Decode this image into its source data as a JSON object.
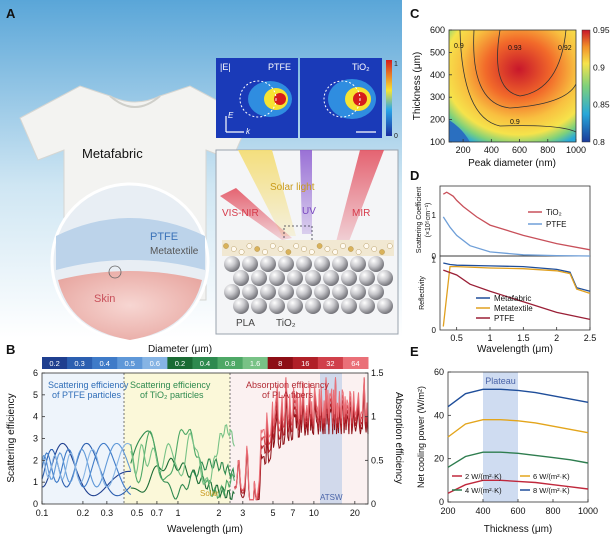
{
  "panels": {
    "A": {
      "letter": "A",
      "shirt_label": "Metafabric",
      "ptfe_label": "PTFE",
      "metatextile_label": "Metatextile",
      "skin_label": "Skin",
      "solar_label": "Solar light",
      "visnir_label": "VIS-NIR",
      "uv_label": "UV",
      "mir_label": "MIR",
      "pla_label": "PLA",
      "tio2_label": "TiO₂",
      "inset_field_label": "|E|",
      "inset_ptfe_label": "PTFE",
      "inset_tio2_label": "TiO₂",
      "inset_e_label": "E",
      "inset_k_label": "k",
      "inset_scale_max": "1",
      "inset_scale_min": "0"
    },
    "B": {
      "letter": "B",
      "diameter_title": "Diameter (μm)",
      "ptfe_diameters": [
        "0.2",
        "0.3",
        "0.4",
        "0.5",
        "0.6"
      ],
      "tio2_diameters": [
        "0.2",
        "0.4",
        "0.8",
        "1.6"
      ],
      "pla_diameters": [
        "8",
        "16",
        "32",
        "64"
      ],
      "ptfe_caption_1": "Scattering efficiency",
      "ptfe_caption_2": "of PTFE particles",
      "tio2_caption_1": "Scattering efficiency",
      "tio2_caption_2": "of TiO₂ particles",
      "pla_caption_1": "Absorption efficiency",
      "pla_caption_2": "of PLA fibers",
      "solar_label": "Solar",
      "atsw_label": "ATSW",
      "xlabel": "Wavelength (μm)",
      "ylabel": "Scattering efficiency",
      "ylabel_right": "Absorption efficiency",
      "y_ticks": [
        "0",
        "1",
        "2",
        "3",
        "4",
        "5",
        "6"
      ],
      "y_ticks_right": [
        "0",
        "0.5",
        "1",
        "1.5"
      ],
      "x_ticks": [
        "0.1",
        "0.2",
        "0.3",
        "0.5",
        "0.7",
        "1",
        "2",
        "3",
        "5",
        "7",
        "10",
        "20"
      ]
    },
    "C": {
      "letter": "C",
      "xlabel": "Peak diameter (nm)",
      "ylabel": "Thickness (μm)",
      "x_ticks": [
        "200",
        "400",
        "600",
        "800",
        "1000"
      ],
      "y_ticks": [
        "100",
        "200",
        "300",
        "400",
        "500",
        "600"
      ],
      "colorbar_ticks": [
        "0.95",
        "0.9",
        "0.85",
        "0.8"
      ],
      "contour_labels": [
        "0.9",
        "0.93",
        "0.92",
        "0.9"
      ]
    },
    "D": {
      "letter": "D",
      "ylabel_top_1": "Scattering Coefficient",
      "ylabel_top_2": "(×10⁵cm⁻¹)",
      "ylabel_bottom": "Reflectivity",
      "xlabel": "Wavelength (μm)",
      "top_y_ticks": [
        "0",
        "1"
      ],
      "bottom_y_ticks": [
        "0",
        "1"
      ],
      "x_ticks": [
        "0.5",
        "1",
        "1.5",
        "2",
        "2.5"
      ],
      "legend_top": [
        "TiO₂",
        "PTFE"
      ],
      "legend_bottom": [
        "Metafabric",
        "Metatextile",
        "PTFE"
      ]
    },
    "E": {
      "letter": "E",
      "xlabel": "Thickness (μm)",
      "ylabel": "Net cooling power (W/m²)",
      "x_ticks": [
        "200",
        "400",
        "600",
        "800",
        "1000"
      ],
      "y_ticks": [
        "0",
        "20",
        "40",
        "60"
      ],
      "plateau_label": "Plateau",
      "legend": [
        "2 W/(m²·K)",
        "4 W/(m²·K)",
        "6 W/(m²·K)",
        "8 W/(m²·K)"
      ]
    }
  },
  "chart_data": [
    {
      "panel": "B",
      "type": "line",
      "xlabel": "Wavelength (μm)",
      "ylabel": "Scattering efficiency",
      "x_scale": "log",
      "xlim": [
        0.1,
        25
      ],
      "ylim": [
        0,
        6
      ],
      "ylim_right": [
        0,
        1.5
      ],
      "regions": [
        {
          "name": "PTFE",
          "x": [
            0.1,
            0.45
          ]
        },
        {
          "name": "TiO₂",
          "x": [
            0.45,
            2.6
          ]
        },
        {
          "name": "PLA",
          "x": [
            2.6,
            25
          ]
        }
      ]
    },
    {
      "panel": "C",
      "type": "heatmap",
      "xlabel": "Peak diameter (nm)",
      "ylabel": "Thickness (μm)",
      "xlim": [
        100,
        1000
      ],
      "ylim": [
        100,
        600
      ],
      "colorbar_range": [
        0.8,
        0.95
      ]
    },
    {
      "panel": "D",
      "type": "line",
      "xlabel": "Wavelength (μm)",
      "xlim": [
        0.25,
        2.5
      ],
      "series_top": [
        {
          "name": "TiO₂",
          "color": "#c8505a",
          "x": [
            0.3,
            0.35,
            0.4,
            0.45,
            0.5,
            0.6,
            0.8,
            1.0,
            1.5,
            2.0,
            2.5
          ],
          "y": [
            1.5,
            1.55,
            1.5,
            1.45,
            1.35,
            1.2,
            0.95,
            0.75,
            0.5,
            0.3,
            0.15
          ]
        },
        {
          "name": "PTFE",
          "color": "#6f9fd8",
          "x": [
            0.3,
            0.4,
            0.5,
            0.7,
            1.0,
            1.5,
            2.0,
            2.5
          ],
          "y": [
            0.95,
            0.7,
            0.5,
            0.25,
            0.1,
            0.03,
            0.01,
            0.0
          ]
        }
      ],
      "series_bottom": [
        {
          "name": "Metafabric",
          "color": "#1f4e9a",
          "x": [
            0.3,
            0.4,
            0.5,
            1.0,
            1.5,
            2.0,
            2.2,
            2.3,
            2.5
          ],
          "y": [
            0.95,
            0.93,
            0.92,
            0.91,
            0.9,
            0.86,
            0.82,
            0.6,
            0.55
          ]
        },
        {
          "name": "Metatextile",
          "color": "#e0a020",
          "x": [
            0.3,
            0.4,
            0.5,
            1.0,
            1.5,
            2.0,
            2.2,
            2.3,
            2.5
          ],
          "y": [
            0.05,
            0.9,
            0.9,
            0.88,
            0.87,
            0.84,
            0.8,
            0.58,
            0.52
          ]
        },
        {
          "name": "PTFE",
          "color": "#9a1f36",
          "x": [
            0.3,
            0.5,
            0.7,
            1.0,
            1.5,
            2.0,
            2.5
          ],
          "y": [
            0.85,
            0.78,
            0.65,
            0.55,
            0.4,
            0.25,
            0.15
          ]
        }
      ]
    },
    {
      "panel": "E",
      "type": "line",
      "xlabel": "Thickness (μm)",
      "ylabel": "Net cooling power (W/m²)",
      "xlim": [
        200,
        1000
      ],
      "ylim": [
        0,
        60
      ],
      "plateau_range": [
        400,
        600
      ],
      "series": [
        {
          "name": "2 W/(m²·K)",
          "color": "#c0283c",
          "x": [
            200,
            300,
            400,
            500,
            600,
            700,
            800,
            900,
            1000
          ],
          "y": [
            4,
            8,
            10,
            10,
            9.5,
            9,
            8,
            7,
            6
          ]
        },
        {
          "name": "4 W/(m²·K)",
          "color": "#2e7d4f",
          "x": [
            200,
            300,
            400,
            500,
            600,
            700,
            800,
            900,
            1000
          ],
          "y": [
            16,
            21,
            23,
            23,
            22.5,
            21.5,
            20.5,
            19.5,
            18
          ]
        },
        {
          "name": "6 W/(m²·K)",
          "color": "#e3a51c",
          "x": [
            200,
            300,
            400,
            500,
            600,
            700,
            800,
            900,
            1000
          ],
          "y": [
            30,
            36,
            38,
            38,
            37.5,
            36.5,
            35,
            33.5,
            32
          ]
        },
        {
          "name": "8 W/(m²·K)",
          "color": "#1f4e9a",
          "x": [
            200,
            300,
            400,
            500,
            600,
            700,
            800,
            900,
            1000
          ],
          "y": [
            44,
            50,
            52,
            52,
            51.5,
            50.5,
            49,
            47.5,
            46
          ]
        }
      ]
    }
  ]
}
